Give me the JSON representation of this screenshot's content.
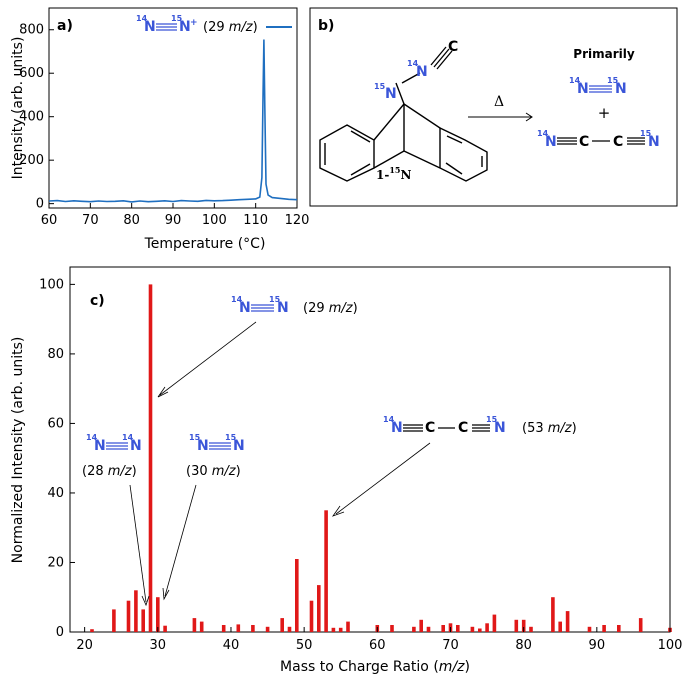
{
  "chart_data": [
    {
      "type": "line",
      "panel_label": "a)",
      "xlabel": "Temperature (°C)",
      "ylabel": "Intensity (arb. units)",
      "xlim": [
        60,
        120
      ],
      "ylim": [
        -20,
        900
      ],
      "xticks": [
        60,
        70,
        80,
        90,
        100,
        110,
        120
      ],
      "yticks": [
        0,
        200,
        400,
        600,
        800
      ],
      "legend": {
        "iso1": "14",
        "atom1": "N",
        "iso2": "15",
        "atom2": "N",
        "charge": "+",
        "mz_open": "(29 ",
        "mz_unit": "m/z",
        "mz_close": ")",
        "color": "#1f6fc0",
        "placement": "top-right"
      },
      "series": [
        {
          "color": "#1f6fc0",
          "x": [
            60,
            62,
            64,
            66,
            68,
            70,
            72,
            74,
            76,
            78,
            80,
            82,
            84,
            86,
            88,
            90,
            92,
            94,
            96,
            98,
            100,
            102,
            104,
            106,
            108,
            110,
            111,
            111.5,
            111.8,
            112,
            112.2,
            112.5,
            113,
            114,
            116,
            118,
            120
          ],
          "y": [
            12,
            14,
            10,
            13,
            11,
            9,
            12,
            10,
            11,
            13,
            8,
            12,
            9,
            11,
            13,
            10,
            14,
            12,
            11,
            15,
            13,
            14,
            16,
            18,
            20,
            22,
            30,
            120,
            520,
            755,
            450,
            90,
            40,
            28,
            24,
            20,
            18
          ]
        }
      ]
    },
    {
      "type": "bar",
      "panel_label": "c)",
      "xlabel_text": "Mass to Charge Ratio (",
      "xlabel_unit": "m/z",
      "xlabel_close": ")",
      "ylabel": "Normalized Intensity (arb. units)",
      "xlim": [
        18,
        100
      ],
      "ylim": [
        0,
        105
      ],
      "xticks": [
        20,
        30,
        40,
        50,
        60,
        70,
        80,
        90,
        100
      ],
      "yticks": [
        0,
        20,
        40,
        60,
        80,
        100
      ],
      "color": "#e01818",
      "x": [
        21,
        24,
        26,
        27,
        28,
        29,
        30,
        31,
        35,
        36,
        39,
        41,
        43,
        45,
        47,
        48,
        49,
        51,
        52,
        53,
        54,
        55,
        56,
        60,
        62,
        65,
        66,
        67,
        69,
        70,
        71,
        73,
        74,
        75,
        76,
        79,
        80,
        81,
        84,
        85,
        86,
        89,
        91,
        93,
        96,
        100
      ],
      "values": [
        0.8,
        6.5,
        9,
        12,
        6.5,
        100,
        10,
        1.8,
        4,
        3,
        2,
        2.2,
        2,
        1.5,
        4,
        1.5,
        21,
        9,
        13.5,
        35,
        1.2,
        1.2,
        3,
        2,
        2,
        1.5,
        3.5,
        1.5,
        2,
        2.5,
        2,
        1.5,
        1,
        2.5,
        5,
        3.5,
        3.5,
        1.5,
        10,
        3,
        6,
        1.5,
        2,
        2,
        4,
        1.2
      ],
      "annotations": [
        {
          "iso1": "14",
          "iso2": "15",
          "mz_open": "(29 ",
          "mz_unit": "m/z",
          "mz_close": ")"
        },
        {
          "iso1": "14",
          "iso2": "14",
          "mz_open": "(28 ",
          "mz_unit": "m/z",
          "mz_close": ")"
        },
        {
          "iso1": "15",
          "iso2": "15",
          "mz_open": "(30 ",
          "mz_unit": "m/z",
          "mz_close": ")"
        },
        {
          "iso1": "14",
          "iso2": "15",
          "mz_open": "(53 ",
          "mz_unit": "m/z",
          "mz_close": ")"
        }
      ]
    }
  ],
  "scheme": {
    "panel_label": "b)",
    "compound_label": "1-",
    "compound_iso": "15",
    "compound_atom": "N",
    "arrow_label": "Δ",
    "primarily": "Primarily",
    "plus": "+",
    "iso14": "14",
    "iso15": "15",
    "atom_N": "N",
    "atom_C": "C"
  }
}
